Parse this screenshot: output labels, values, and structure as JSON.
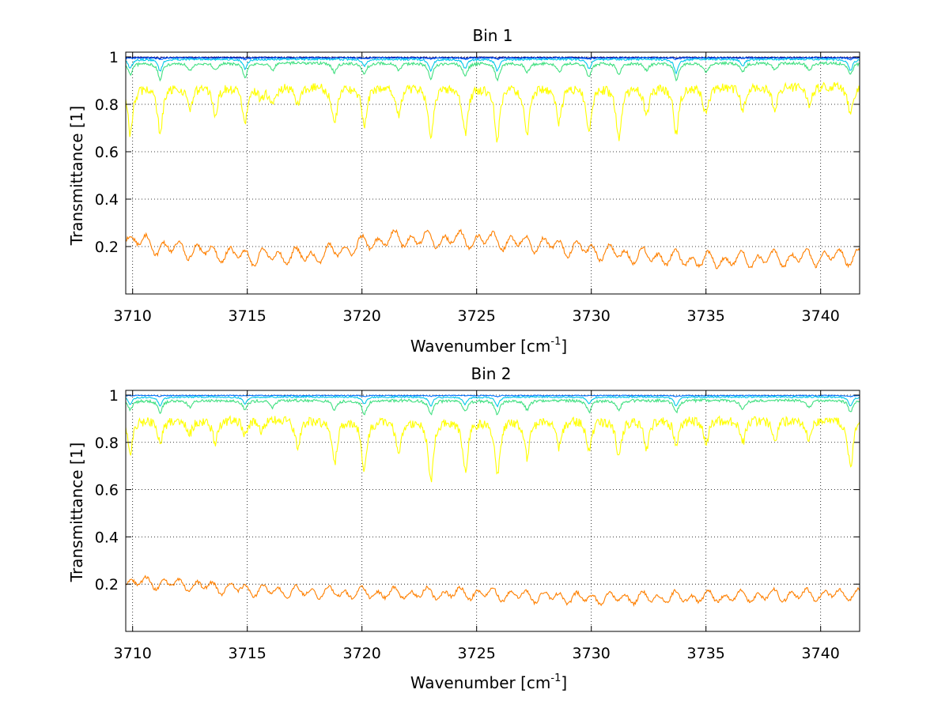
{
  "chart_data": [
    {
      "type": "line",
      "title": "Bin 1",
      "xlabel": "Wavenumber [cm",
      "xlabel_sup": "-1",
      "xlabel_close": "]",
      "ylabel": "Transmittance [1]",
      "xlim": [
        3709.7,
        3741.7
      ],
      "ylim": [
        0,
        1.02
      ],
      "xticks": [
        3710,
        3715,
        3720,
        3725,
        3730,
        3735,
        3740
      ],
      "xtick_labels": [
        "3710",
        "3715",
        "3720",
        "3725",
        "3730",
        "3735",
        "3740"
      ],
      "yticks": [
        0.2,
        0.4,
        0.6,
        0.8,
        1
      ],
      "ytick_labels": [
        "0.2",
        "0.4",
        "0.6",
        "0.8",
        "1"
      ],
      "grid": true,
      "series": [
        {
          "name": "dark-blue",
          "color": "#00008f",
          "base": 0.998,
          "dips": [
            [
              3711.2,
              0.004
            ],
            [
              3714.9,
              0.004
            ],
            [
              3720.1,
              0.003
            ],
            [
              3723.0,
              0.004
            ],
            [
              3724.5,
              0.004
            ],
            [
              3725.9,
              0.004
            ],
            [
              3729.9,
              0.004
            ],
            [
              3733.7,
              0.004
            ],
            [
              3736.6,
              0.004
            ],
            [
              3741.3,
              0.004
            ]
          ],
          "width": 0.08,
          "noise": 0.003
        },
        {
          "name": "blue",
          "color": "#0060ff",
          "base": 0.995,
          "dips": [
            [
              3711.2,
              0.006
            ],
            [
              3714.9,
              0.006
            ],
            [
              3720.1,
              0.005
            ],
            [
              3723.0,
              0.006
            ],
            [
              3724.5,
              0.006
            ],
            [
              3725.9,
              0.006
            ],
            [
              3729.9,
              0.006
            ],
            [
              3733.7,
              0.006
            ],
            [
              3741.3,
              0.006
            ]
          ],
          "width": 0.08,
          "noise": 0.003
        },
        {
          "name": "cyan",
          "color": "#00c8e8",
          "base": 0.99,
          "dips": [
            [
              3709.9,
              0.04
            ],
            [
              3711.2,
              0.05
            ],
            [
              3714.9,
              0.04
            ],
            [
              3720.1,
              0.03
            ],
            [
              3723.0,
              0.05
            ],
            [
              3724.5,
              0.04
            ],
            [
              3725.9,
              0.05
            ],
            [
              3729.9,
              0.04
            ],
            [
              3733.7,
              0.06
            ],
            [
              3736.6,
              0.03
            ],
            [
              3741.3,
              0.05
            ]
          ],
          "width": 0.1,
          "noise": 0.004
        },
        {
          "name": "green",
          "color": "#40e080",
          "base": 0.975,
          "dips": [
            [
              3709.9,
              0.05
            ],
            [
              3711.2,
              0.07
            ],
            [
              3712.5,
              0.03
            ],
            [
              3713.6,
              0.03
            ],
            [
              3714.9,
              0.06
            ],
            [
              3716.1,
              0.03
            ],
            [
              3718.8,
              0.04
            ],
            [
              3720.1,
              0.05
            ],
            [
              3721.6,
              0.03
            ],
            [
              3723.0,
              0.07
            ],
            [
              3724.5,
              0.06
            ],
            [
              3725.9,
              0.07
            ],
            [
              3727.2,
              0.04
            ],
            [
              3728.6,
              0.04
            ],
            [
              3729.9,
              0.06
            ],
            [
              3731.2,
              0.05
            ],
            [
              3732.4,
              0.03
            ],
            [
              3733.7,
              0.07
            ],
            [
              3735.0,
              0.04
            ],
            [
              3736.6,
              0.04
            ],
            [
              3738.0,
              0.03
            ],
            [
              3739.5,
              0.03
            ],
            [
              3741.3,
              0.05
            ]
          ],
          "width": 0.12,
          "noise": 0.006
        },
        {
          "name": "yellow",
          "color": "#ffff00",
          "base": 0.88,
          "dips": [
            [
              3709.9,
              0.2
            ],
            [
              3711.2,
              0.2
            ],
            [
              3712.5,
              0.1
            ],
            [
              3713.6,
              0.12
            ],
            [
              3714.9,
              0.15
            ],
            [
              3715.6,
              0.05
            ],
            [
              3716.1,
              0.08
            ],
            [
              3717.2,
              0.08
            ],
            [
              3718.8,
              0.16
            ],
            [
              3720.1,
              0.17
            ],
            [
              3721.6,
              0.12
            ],
            [
              3723.0,
              0.22
            ],
            [
              3724.5,
              0.2
            ],
            [
              3725.9,
              0.22
            ],
            [
              3727.2,
              0.2
            ],
            [
              3728.6,
              0.15
            ],
            [
              3729.9,
              0.2
            ],
            [
              3731.2,
              0.22
            ],
            [
              3732.4,
              0.12
            ],
            [
              3733.7,
              0.2
            ],
            [
              3735.0,
              0.12
            ],
            [
              3736.6,
              0.1
            ],
            [
              3738.0,
              0.1
            ],
            [
              3739.5,
              0.08
            ],
            [
              3741.3,
              0.12
            ]
          ],
          "width": 0.14,
          "noise": 0.02
        },
        {
          "name": "orange",
          "color": "#ff8000",
          "trend": [
            [
              3709.7,
              0.24
            ],
            [
              3711,
              0.2
            ],
            [
              3715,
              0.16
            ],
            [
              3718,
              0.16
            ],
            [
              3721,
              0.23
            ],
            [
              3725,
              0.23
            ],
            [
              3728,
              0.21
            ],
            [
              3731,
              0.17
            ],
            [
              3735,
              0.14
            ],
            [
              3741.7,
              0.16
            ]
          ],
          "ripple": 0.025,
          "noise": 0.008
        },
        {
          "name": "dark-red",
          "color": "#800000",
          "constant": 0.0
        }
      ]
    },
    {
      "type": "line",
      "title": "Bin 2",
      "xlabel": "Wavenumber [cm",
      "xlabel_sup": "-1",
      "xlabel_close": "]",
      "ylabel": "Transmittance [1]",
      "xlim": [
        3709.7,
        3741.7
      ],
      "ylim": [
        0,
        1.02
      ],
      "xticks": [
        3710,
        3715,
        3720,
        3725,
        3730,
        3735,
        3740
      ],
      "xtick_labels": [
        "3710",
        "3715",
        "3720",
        "3725",
        "3730",
        "3735",
        "3740"
      ],
      "yticks": [
        0.2,
        0.4,
        0.6,
        0.8,
        1
      ],
      "ytick_labels": [
        "0.2",
        "0.4",
        "0.6",
        "0.8",
        "1"
      ],
      "grid": true,
      "series": [
        {
          "name": "blue",
          "color": "#0070ff",
          "base": 0.998,
          "dips": [
            [
              3711.2,
              0.004
            ],
            [
              3720.1,
              0.004
            ],
            [
              3723.0,
              0.004
            ],
            [
              3725.9,
              0.004
            ],
            [
              3733.7,
              0.004
            ],
            [
              3741.3,
              0.004
            ]
          ],
          "width": 0.08,
          "noise": 0.002
        },
        {
          "name": "cyan",
          "color": "#00c8e8",
          "base": 0.992,
          "dips": [
            [
              3709.9,
              0.03
            ],
            [
              3711.2,
              0.04
            ],
            [
              3714.9,
              0.03
            ],
            [
              3720.1,
              0.03
            ],
            [
              3723.0,
              0.04
            ],
            [
              3724.5,
              0.03
            ],
            [
              3725.9,
              0.04
            ],
            [
              3729.9,
              0.03
            ],
            [
              3733.7,
              0.04
            ],
            [
              3741.3,
              0.04
            ]
          ],
          "width": 0.1,
          "noise": 0.003
        },
        {
          "name": "green",
          "color": "#40e080",
          "base": 0.978,
          "dips": [
            [
              3709.9,
              0.04
            ],
            [
              3711.2,
              0.05
            ],
            [
              3712.5,
              0.03
            ],
            [
              3714.9,
              0.04
            ],
            [
              3716.1,
              0.03
            ],
            [
              3718.8,
              0.04
            ],
            [
              3720.1,
              0.06
            ],
            [
              3723.0,
              0.06
            ],
            [
              3724.5,
              0.05
            ],
            [
              3725.9,
              0.06
            ],
            [
              3727.2,
              0.04
            ],
            [
              3729.9,
              0.05
            ],
            [
              3731.2,
              0.04
            ],
            [
              3733.7,
              0.05
            ],
            [
              3736.6,
              0.04
            ],
            [
              3739.5,
              0.03
            ],
            [
              3741.3,
              0.05
            ]
          ],
          "width": 0.12,
          "noise": 0.006
        },
        {
          "name": "yellow",
          "color": "#ffff00",
          "base": 0.9,
          "dips": [
            [
              3709.9,
              0.14
            ],
            [
              3711.2,
              0.1
            ],
            [
              3712.5,
              0.06
            ],
            [
              3713.6,
              0.1
            ],
            [
              3714.9,
              0.06
            ],
            [
              3715.6,
              0.05
            ],
            [
              3717.2,
              0.12
            ],
            [
              3718.8,
              0.19
            ],
            [
              3720.1,
              0.22
            ],
            [
              3721.6,
              0.15
            ],
            [
              3723.0,
              0.26
            ],
            [
              3724.5,
              0.22
            ],
            [
              3725.9,
              0.24
            ],
            [
              3727.2,
              0.16
            ],
            [
              3728.6,
              0.12
            ],
            [
              3729.9,
              0.13
            ],
            [
              3731.2,
              0.16
            ],
            [
              3732.4,
              0.12
            ],
            [
              3733.7,
              0.1
            ],
            [
              3735.0,
              0.1
            ],
            [
              3736.6,
              0.1
            ],
            [
              3738.0,
              0.1
            ],
            [
              3739.5,
              0.08
            ],
            [
              3741.3,
              0.2
            ]
          ],
          "width": 0.14,
          "noise": 0.02
        },
        {
          "name": "orange",
          "color": "#ff8000",
          "trend": [
            [
              3709.7,
              0.21
            ],
            [
              3712,
              0.2
            ],
            [
              3716,
              0.17
            ],
            [
              3720,
              0.16
            ],
            [
              3725,
              0.16
            ],
            [
              3730,
              0.14
            ],
            [
              3735,
              0.145
            ],
            [
              3741.7,
              0.16
            ]
          ],
          "ripple": 0.018,
          "noise": 0.007
        },
        {
          "name": "dark-red",
          "color": "#800000",
          "constant": 0.0
        }
      ]
    }
  ]
}
